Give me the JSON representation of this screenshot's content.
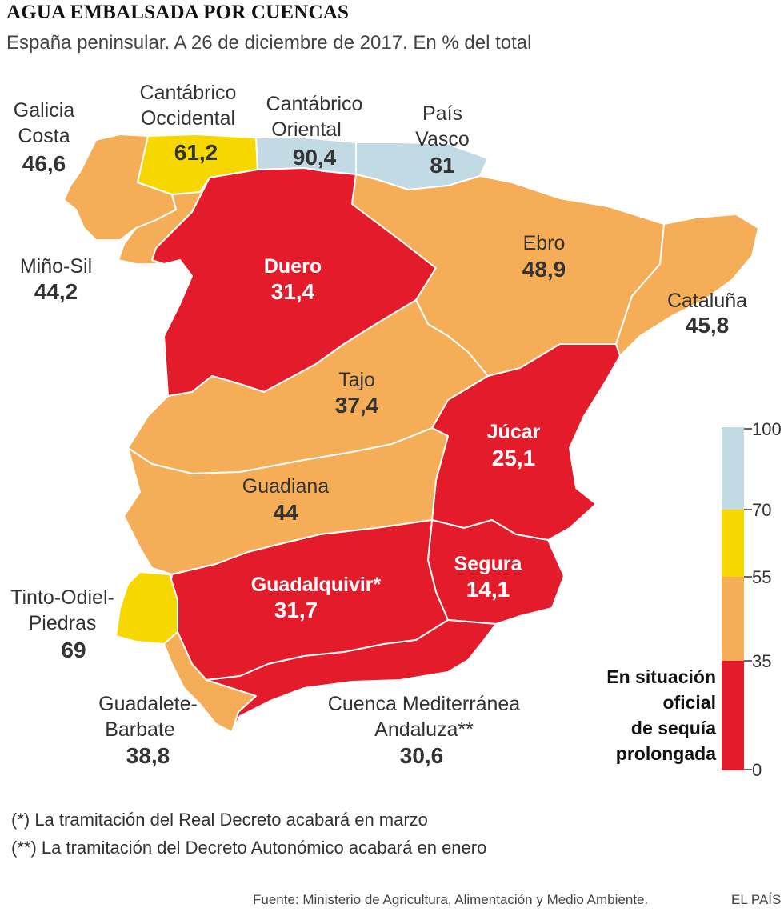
{
  "title": "AGUA EMBALSADA POR CUENCAS",
  "subtitle": "España peninsular. A 26 de diciembre de 2017. En % del total",
  "colors": {
    "blue": "#c1dae3",
    "yellow": "#f6d800",
    "orange": "#f5ae57",
    "red": "#e31b2a"
  },
  "basins": [
    {
      "id": "galicia",
      "name_lines": [
        "Galicia",
        "Costa"
      ],
      "value": "46,6",
      "color": "orange"
    },
    {
      "id": "cantabrico_occ",
      "name_lines": [
        "Cantábrico",
        "Occidental"
      ],
      "value": "61,2",
      "color": "yellow"
    },
    {
      "id": "cantabrico_or",
      "name_lines": [
        "Cantábrico",
        "Oriental"
      ],
      "value": "90,4",
      "color": "blue"
    },
    {
      "id": "pais_vasco",
      "name_lines": [
        "País",
        "Vasco"
      ],
      "value": "81",
      "color": "blue"
    },
    {
      "id": "mino_sil",
      "name_lines": [
        "Miño-Sil"
      ],
      "value": "44,2",
      "color": "orange"
    },
    {
      "id": "duero",
      "name_lines": [
        "Duero"
      ],
      "value": "31,4",
      "color": "red"
    },
    {
      "id": "ebro",
      "name_lines": [
        "Ebro"
      ],
      "value": "48,9",
      "color": "orange"
    },
    {
      "id": "cataluna",
      "name_lines": [
        "Cataluña"
      ],
      "value": "45,8",
      "color": "orange"
    },
    {
      "id": "tajo",
      "name_lines": [
        "Tajo"
      ],
      "value": "37,4",
      "color": "orange"
    },
    {
      "id": "jucar",
      "name_lines": [
        "Júcar"
      ],
      "value": "25,1",
      "color": "red"
    },
    {
      "id": "guadiana",
      "name_lines": [
        "Guadiana"
      ],
      "value": "44",
      "color": "orange"
    },
    {
      "id": "segura",
      "name_lines": [
        "Segura"
      ],
      "value": "14,1",
      "color": "red"
    },
    {
      "id": "guadalquivir",
      "name_lines": [
        "Guadalquivir*"
      ],
      "value": "31,7",
      "color": "red"
    },
    {
      "id": "tinto",
      "name_lines": [
        "Tinto-Odiel-",
        "Piedras"
      ],
      "value": "69",
      "color": "yellow"
    },
    {
      "id": "guadalete",
      "name_lines": [
        "Guadalete-",
        "Barbate"
      ],
      "value": "38,8",
      "color": "orange"
    },
    {
      "id": "cma",
      "name_lines": [
        "Cuenca  Mediterránea",
        "Andaluza**"
      ],
      "value": "30,6",
      "color": "red"
    }
  ],
  "legend": {
    "ticks": [
      "100",
      "70",
      "55",
      "35",
      "0"
    ],
    "drought_label_lines": [
      "En situación",
      "oficial",
      "de sequía",
      "prolongada"
    ]
  },
  "notes": [
    "(*) La tramitación del Real Decreto acabará en marzo",
    "(**) La tramitación del Decreto Autonómico acabará en enero"
  ],
  "source": "Fuente: Ministerio de Agricultura, Alimentación y Medio Ambiente.",
  "brand": "EL PAÍS"
}
